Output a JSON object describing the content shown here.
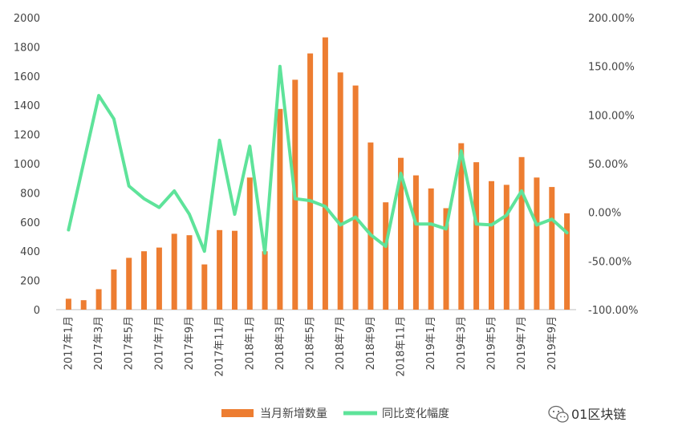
{
  "chart_data": {
    "type": "bar",
    "categories": [
      "2017年1月",
      "2017年2月",
      "2017年3月",
      "2017年4月",
      "2017年5月",
      "2017年6月",
      "2017年7月",
      "2017年8月",
      "2017年9月",
      "2017年10月",
      "2017年11月",
      "2017年12月",
      "2018年1月",
      "2018年2月",
      "2018年3月",
      "2018年4月",
      "2018年5月",
      "2018年6月",
      "2018年7月",
      "2018年8月",
      "2018年9月",
      "2018年10月",
      "2018年11月",
      "2018年12月",
      "2019年1月",
      "2019年2月",
      "2019年3月",
      "2019年4月",
      "2019年5月",
      "2019年6月",
      "2019年7月",
      "2019年8月",
      "2019年9月",
      "2019年10月"
    ],
    "x_tick_labels": [
      "2017年1月",
      "2017年3月",
      "2017年5月",
      "2017年7月",
      "2017年9月",
      "2017年11月",
      "2018年1月",
      "2018年3月",
      "2018年5月",
      "2018年7月",
      "2018年9月",
      "2018年11月",
      "2019年1月",
      "2019年3月",
      "2019年5月",
      "2019年7月",
      "2019年9月"
    ],
    "series": [
      {
        "name": "当月新增数量",
        "type": "bar",
        "axis": "left",
        "color": "#ed7d31",
        "values": [
          75,
          65,
          140,
          275,
          355,
          400,
          425,
          520,
          510,
          310,
          545,
          540,
          905,
          400,
          1375,
          1575,
          1755,
          1865,
          1625,
          1535,
          1145,
          735,
          1040,
          920,
          830,
          695,
          1140,
          1010,
          880,
          855,
          1045,
          905,
          840,
          660
        ]
      },
      {
        "name": "同比变化幅度",
        "type": "line",
        "axis": "right",
        "color": "#5ee39a",
        "values": [
          -18,
          null,
          120,
          96,
          27,
          14,
          5,
          22,
          -2,
          -40,
          74,
          -2,
          68,
          -42,
          150,
          14,
          12,
          6,
          -13,
          -5,
          -23,
          -35,
          40,
          -12,
          -12,
          -17,
          63,
          -12,
          -13,
          -3,
          22,
          -13,
          -7,
          -21
        ]
      }
    ],
    "y_left": {
      "ylim": [
        0,
        2000
      ],
      "ticks": [
        "0",
        "200",
        "400",
        "600",
        "800",
        "1000",
        "1200",
        "1400",
        "1600",
        "1800",
        "2000"
      ]
    },
    "y_right": {
      "ylim": [
        -100,
        200
      ],
      "ticks": [
        "-100.00%",
        "-50.00%",
        "0.00%",
        "50.00%",
        "100.00%",
        "150.00%",
        "200.00%"
      ]
    },
    "legend": {
      "position": "bottom",
      "items": [
        "当月新增数量",
        "同比变化幅度"
      ]
    },
    "grid": false
  },
  "watermark": {
    "text": "01区块链",
    "icon": "wechat-icon"
  }
}
